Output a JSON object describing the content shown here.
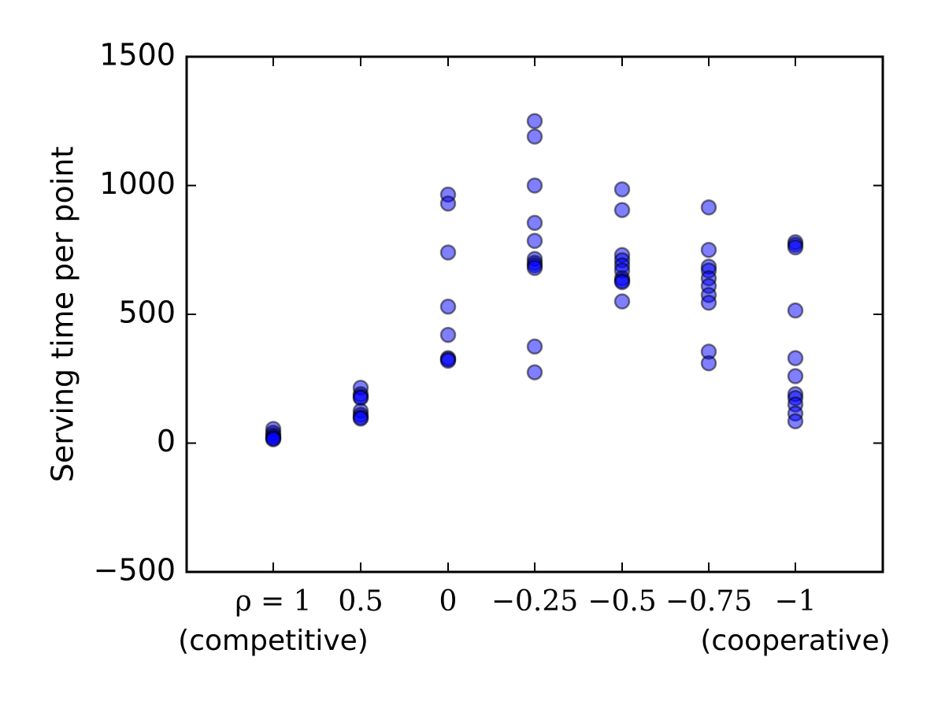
{
  "chart_data": {
    "type": "scatter",
    "title": "",
    "xlabel": "",
    "ylabel": "Serving time per point",
    "ylim": [
      -500,
      1500
    ],
    "y_ticks": [
      "1500",
      "1000",
      "500",
      "0",
      "−500"
    ],
    "y_tick_values": [
      1500,
      1000,
      500,
      0,
      -500
    ],
    "x_tick_labels": [
      "ρ = 1",
      "0.5",
      "0",
      "−0.25",
      "−0.5",
      "−0.75",
      "−1"
    ],
    "x_sub_labels": {
      "left": "(competitive)",
      "right": "(cooperative)"
    },
    "grid": false,
    "marker_color": "#0000ff",
    "marker_opacity": 0.5,
    "series": [
      {
        "category": "ρ = 1",
        "values": [
          55,
          40,
          30,
          22,
          18,
          15
        ]
      },
      {
        "category": "0.5",
        "values": [
          215,
          190,
          180,
          175,
          125,
          110,
          100,
          95
        ]
      },
      {
        "category": "0",
        "values": [
          965,
          930,
          740,
          530,
          420,
          330,
          325,
          320
        ]
      },
      {
        "category": "−0.25",
        "values": [
          1250,
          1190,
          1000,
          855,
          785,
          715,
          700,
          690,
          680,
          375,
          275
        ]
      },
      {
        "category": "−0.5",
        "values": [
          985,
          905,
          730,
          710,
          690,
          670,
          640,
          630,
          625,
          550
        ]
      },
      {
        "category": "−0.75",
        "values": [
          915,
          750,
          685,
          670,
          640,
          610,
          575,
          545,
          355,
          310
        ]
      },
      {
        "category": "−1",
        "values": [
          780,
          770,
          760,
          515,
          330,
          260,
          190,
          175,
          150,
          115,
          85
        ]
      }
    ]
  }
}
